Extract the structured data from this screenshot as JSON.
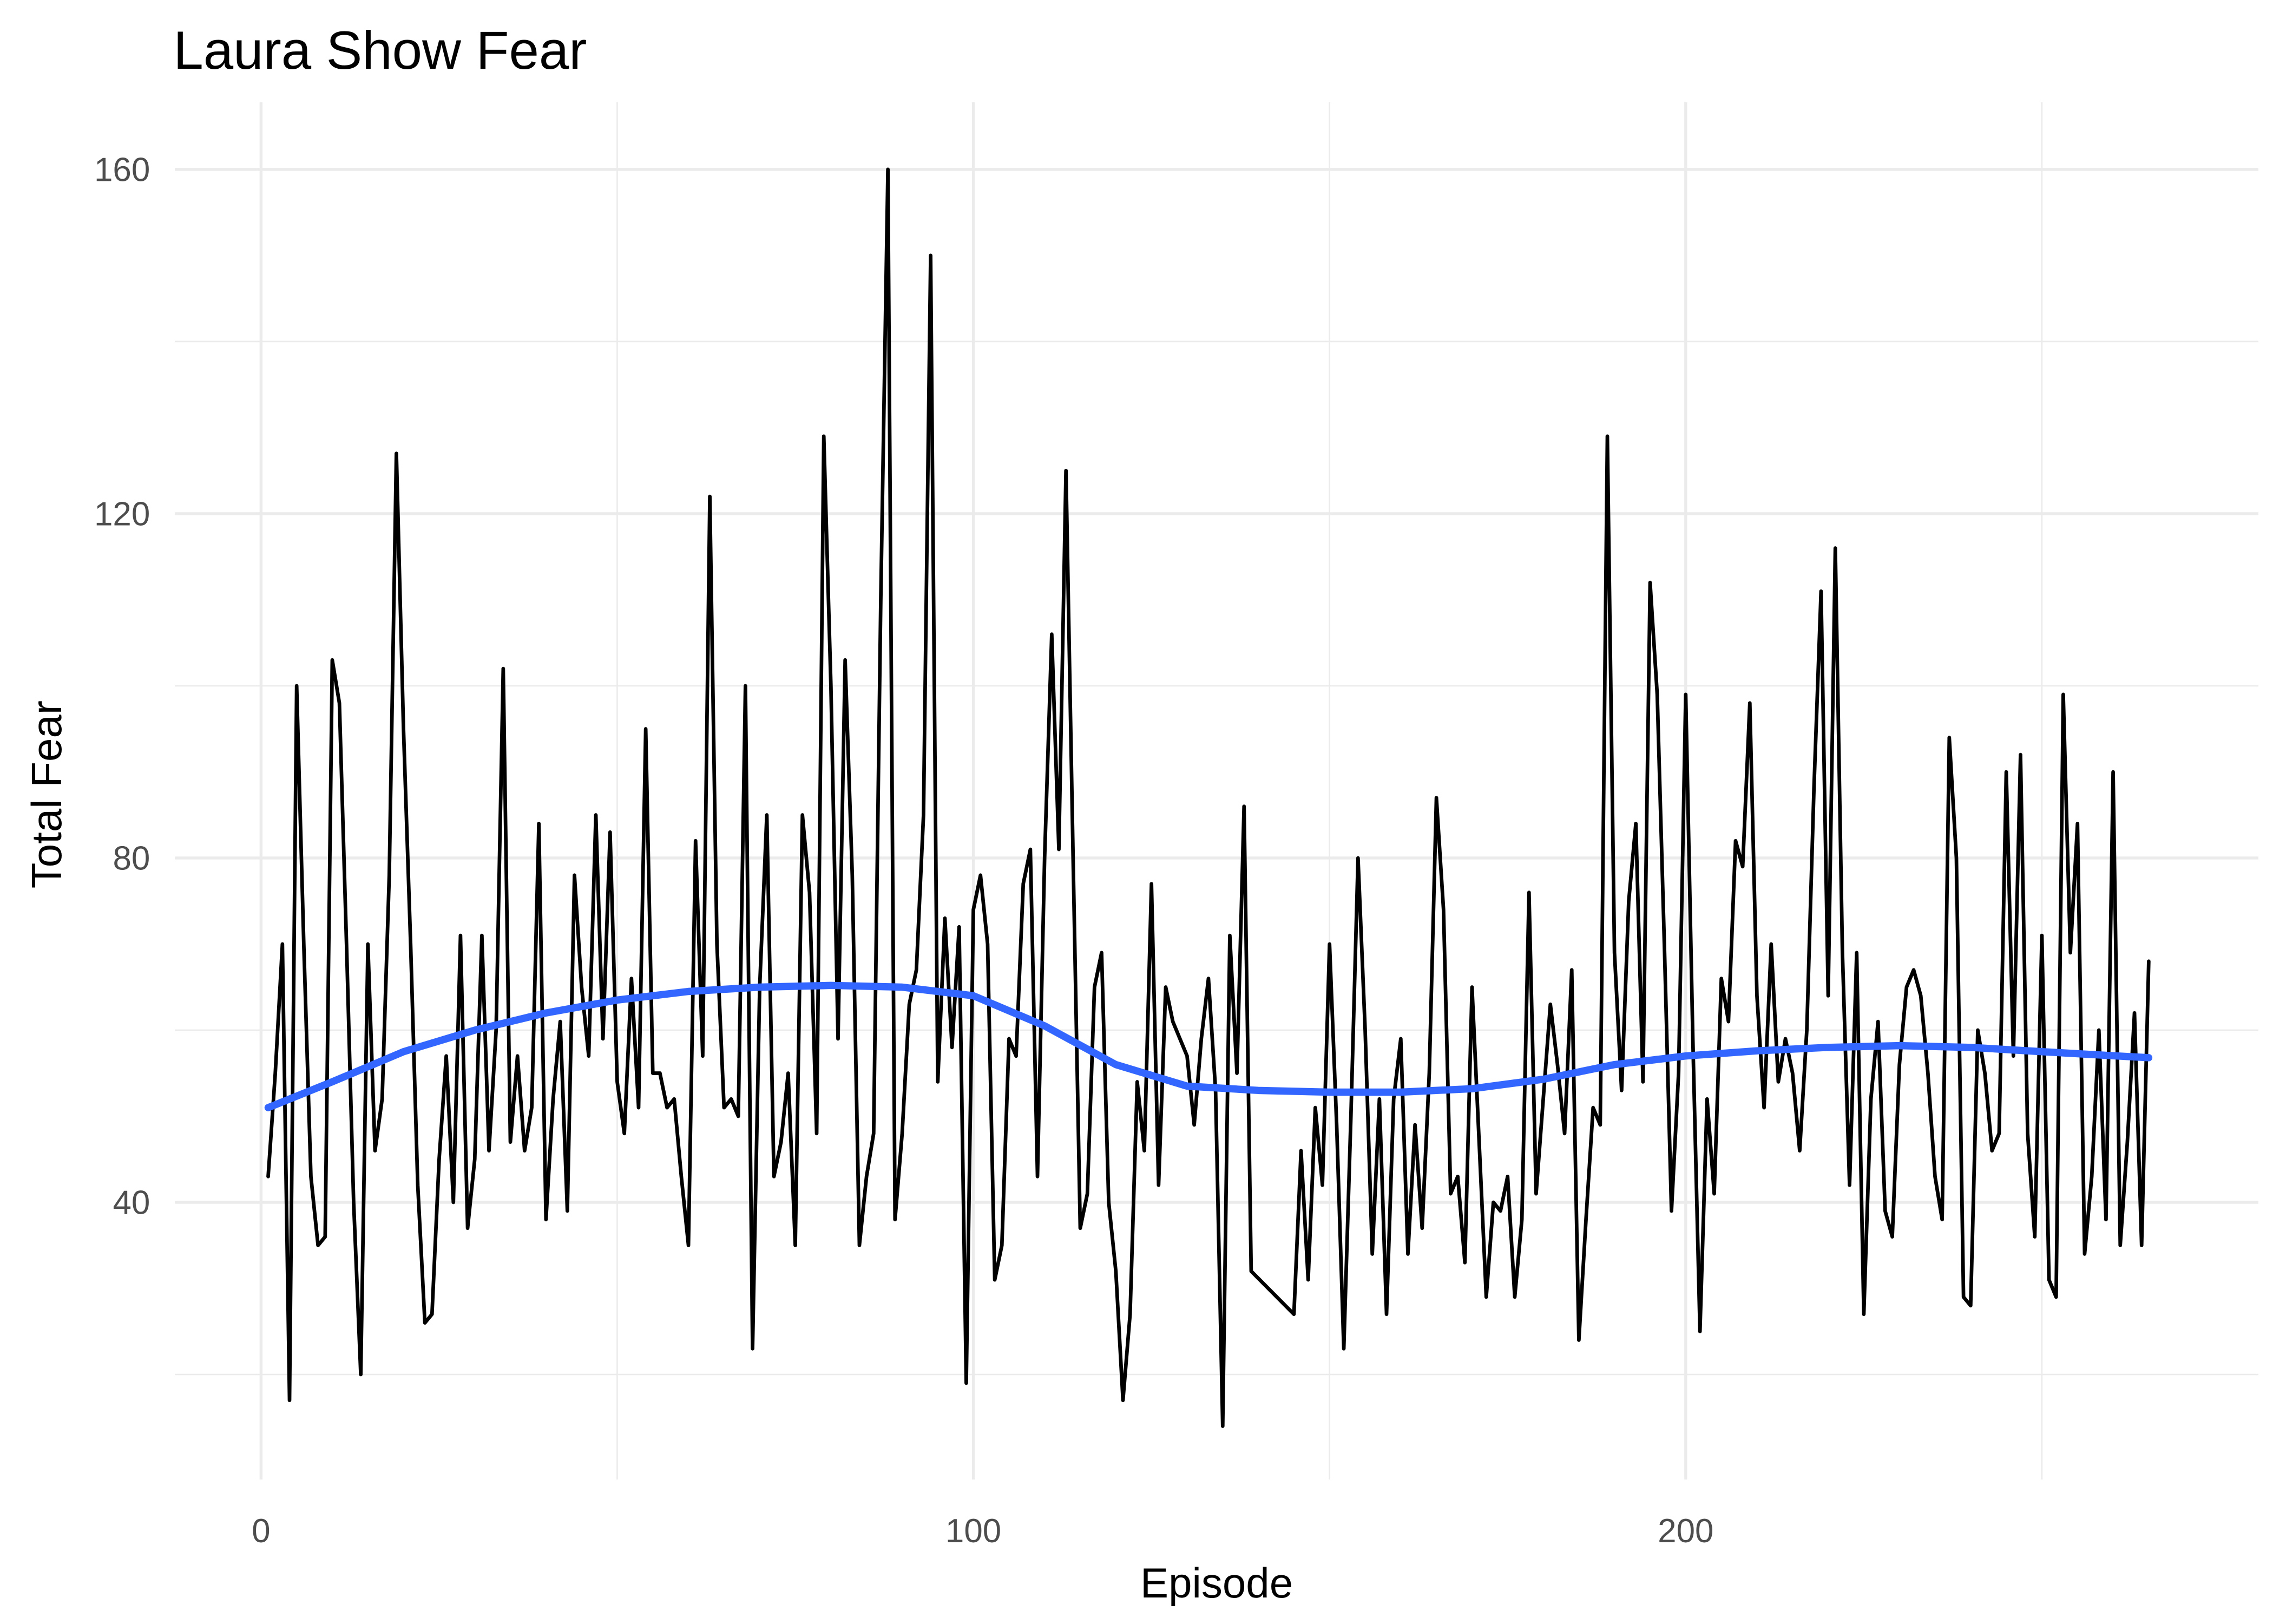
{
  "chart_data": {
    "type": "line",
    "title": "Laura Show Fear",
    "x_label": "Episode",
    "y_label": "Total Fear",
    "xlim": [
      -12.1,
      280.4
    ],
    "ylim": [
      7.8,
      167.8
    ],
    "xticks": [
      0,
      100,
      200
    ],
    "yticks": [
      40,
      80,
      120,
      160
    ],
    "xminor": [
      50,
      150,
      250
    ],
    "yminor": [
      20,
      60,
      100,
      140
    ],
    "grid": true,
    "x": [
      1,
      2,
      3,
      4,
      5,
      6,
      7,
      8,
      9,
      10,
      11,
      12,
      13,
      14,
      15,
      16,
      17,
      18,
      19,
      20,
      21,
      22,
      23,
      24,
      25,
      26,
      27,
      28,
      29,
      30,
      31,
      32,
      33,
      34,
      35,
      36,
      37,
      38,
      39,
      40,
      41,
      42,
      43,
      44,
      45,
      46,
      47,
      48,
      49,
      50,
      51,
      52,
      53,
      54,
      55,
      56,
      57,
      58,
      59,
      60,
      61,
      62,
      63,
      64,
      65,
      66,
      67,
      68,
      69,
      70,
      71,
      72,
      73,
      74,
      75,
      76,
      77,
      78,
      79,
      80,
      81,
      82,
      83,
      84,
      85,
      86,
      87,
      88,
      89,
      90,
      91,
      92,
      93,
      94,
      95,
      96,
      97,
      98,
      99,
      100,
      101,
      102,
      103,
      104,
      105,
      106,
      107,
      108,
      109,
      110,
      111,
      112,
      113,
      114,
      115,
      116,
      117,
      118,
      119,
      120,
      121,
      122,
      123,
      124,
      125,
      126,
      127,
      128,
      129,
      130,
      131,
      132,
      133,
      134,
      135,
      136,
      137,
      138,
      139,
      145,
      146,
      147,
      148,
      149,
      150,
      151,
      152,
      153,
      154,
      155,
      156,
      157,
      158,
      159,
      160,
      161,
      162,
      163,
      164,
      165,
      166,
      167,
      168,
      169,
      170,
      171,
      172,
      173,
      174,
      175,
      176,
      177,
      178,
      179,
      180,
      181,
      182,
      183,
      184,
      185,
      186,
      187,
      188,
      189,
      190,
      191,
      192,
      193,
      194,
      195,
      196,
      197,
      198,
      199,
      200,
      201,
      202,
      203,
      204,
      205,
      206,
      207,
      208,
      209,
      210,
      211,
      212,
      213,
      214,
      215,
      216,
      217,
      218,
      219,
      220,
      221,
      222,
      223,
      224,
      225,
      226,
      227,
      228,
      229,
      230,
      231,
      232,
      233,
      234,
      235,
      236,
      237,
      238,
      239,
      240,
      241,
      242,
      243,
      244,
      245,
      246,
      247,
      248,
      249,
      250,
      251,
      252,
      253,
      254,
      255,
      256,
      257,
      258,
      259,
      260,
      261,
      262,
      263,
      264,
      265
    ],
    "series": [
      {
        "color": "#000000",
        "values": [
          43,
          55,
          70,
          17,
          100,
          70,
          43,
          35,
          36,
          103,
          98,
          70,
          40,
          20,
          70,
          46,
          52,
          78,
          127,
          95,
          70,
          42,
          26,
          27,
          45,
          57,
          40,
          71,
          37,
          45,
          71,
          46,
          60,
          102,
          47,
          57,
          46,
          51,
          84,
          38,
          52,
          61,
          39,
          78,
          65,
          57,
          85,
          59,
          83,
          54,
          48,
          66,
          51,
          95,
          55,
          55,
          51,
          52,
          43,
          35,
          82,
          57,
          122,
          70,
          51,
          52,
          50,
          100,
          23,
          65,
          85,
          43,
          47,
          55,
          35,
          85,
          76,
          48,
          129,
          100,
          59,
          103,
          78,
          35,
          43,
          48,
          110,
          160,
          38,
          48,
          63,
          67,
          85,
          150,
          54,
          73,
          58,
          72,
          19,
          74,
          78,
          70,
          31,
          35,
          59,
          57,
          77,
          81,
          43,
          80,
          106,
          81,
          125,
          80,
          37,
          41,
          65,
          69,
          40,
          32,
          17,
          27,
          54,
          46,
          77,
          42,
          65,
          61,
          59,
          57,
          49,
          59,
          66,
          53,
          14,
          71,
          55,
          86,
          32,
          27,
          46,
          31,
          51,
          42,
          70,
          49,
          23,
          50,
          80,
          60,
          34,
          52,
          27,
          52,
          59,
          34,
          49,
          37,
          55,
          87,
          74,
          41,
          43,
          33,
          65,
          47,
          29,
          40,
          39,
          43,
          29,
          38,
          76,
          41,
          52,
          63,
          56,
          48,
          67,
          24,
          38,
          51,
          49,
          129,
          69,
          53,
          75,
          84,
          54,
          112,
          99,
          70,
          39,
          55,
          99,
          59,
          25,
          52,
          41,
          66,
          61,
          82,
          79,
          98,
          64,
          51,
          70,
          54,
          59,
          55,
          46,
          60,
          88,
          111,
          64,
          116,
          69,
          42,
          69,
          27,
          52,
          61,
          39,
          36,
          56,
          65,
          67,
          64,
          55,
          43,
          38,
          94,
          80,
          29,
          28,
          60,
          55,
          46,
          48,
          90,
          57,
          92,
          48,
          36,
          71,
          31,
          29,
          99,
          69,
          84,
          34,
          43,
          60,
          38,
          90,
          35,
          47,
          62,
          35,
          68
        ]
      },
      {
        "color": "#3366ff",
        "x": [
          1,
          10,
          20,
          30,
          40,
          50,
          60,
          70,
          80,
          90,
          100,
          110,
          120,
          130,
          140,
          150,
          160,
          170,
          180,
          190,
          200,
          210,
          220,
          230,
          240,
          250,
          265
        ],
        "values": [
          51,
          54,
          57.5,
          60,
          62,
          63.5,
          64.5,
          65,
          65.2,
          65,
          64,
          60.5,
          56,
          53.5,
          53,
          52.8,
          52.8,
          53.2,
          54.3,
          56,
          57,
          57.6,
          58,
          58.2,
          58,
          57.5,
          56.8
        ]
      }
    ]
  }
}
